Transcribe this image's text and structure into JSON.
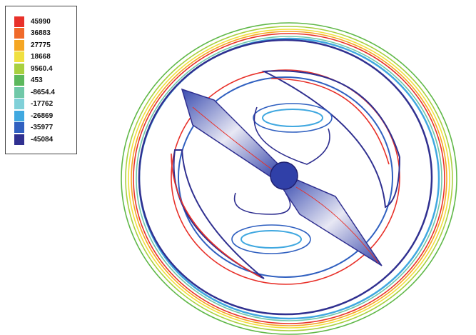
{
  "legend": {
    "entries": [
      {
        "label": "45990",
        "color": "#e8312a"
      },
      {
        "label": "36883",
        "color": "#f06a2a"
      },
      {
        "label": "27775",
        "color": "#f5a623"
      },
      {
        "label": "18668",
        "color": "#f0e040"
      },
      {
        "label": "9560.4",
        "color": "#a8d040"
      },
      {
        "label": "453",
        "color": "#5cb85c"
      },
      {
        "label": "-8654.4",
        "color": "#70c8a8"
      },
      {
        "label": "-17762",
        "color": "#80d0d8"
      },
      {
        "label": "-26869",
        "color": "#40a8e0"
      },
      {
        "label": "-35977",
        "color": "#3060c0"
      },
      {
        "label": "-45084",
        "color": "#303090"
      }
    ]
  }
}
